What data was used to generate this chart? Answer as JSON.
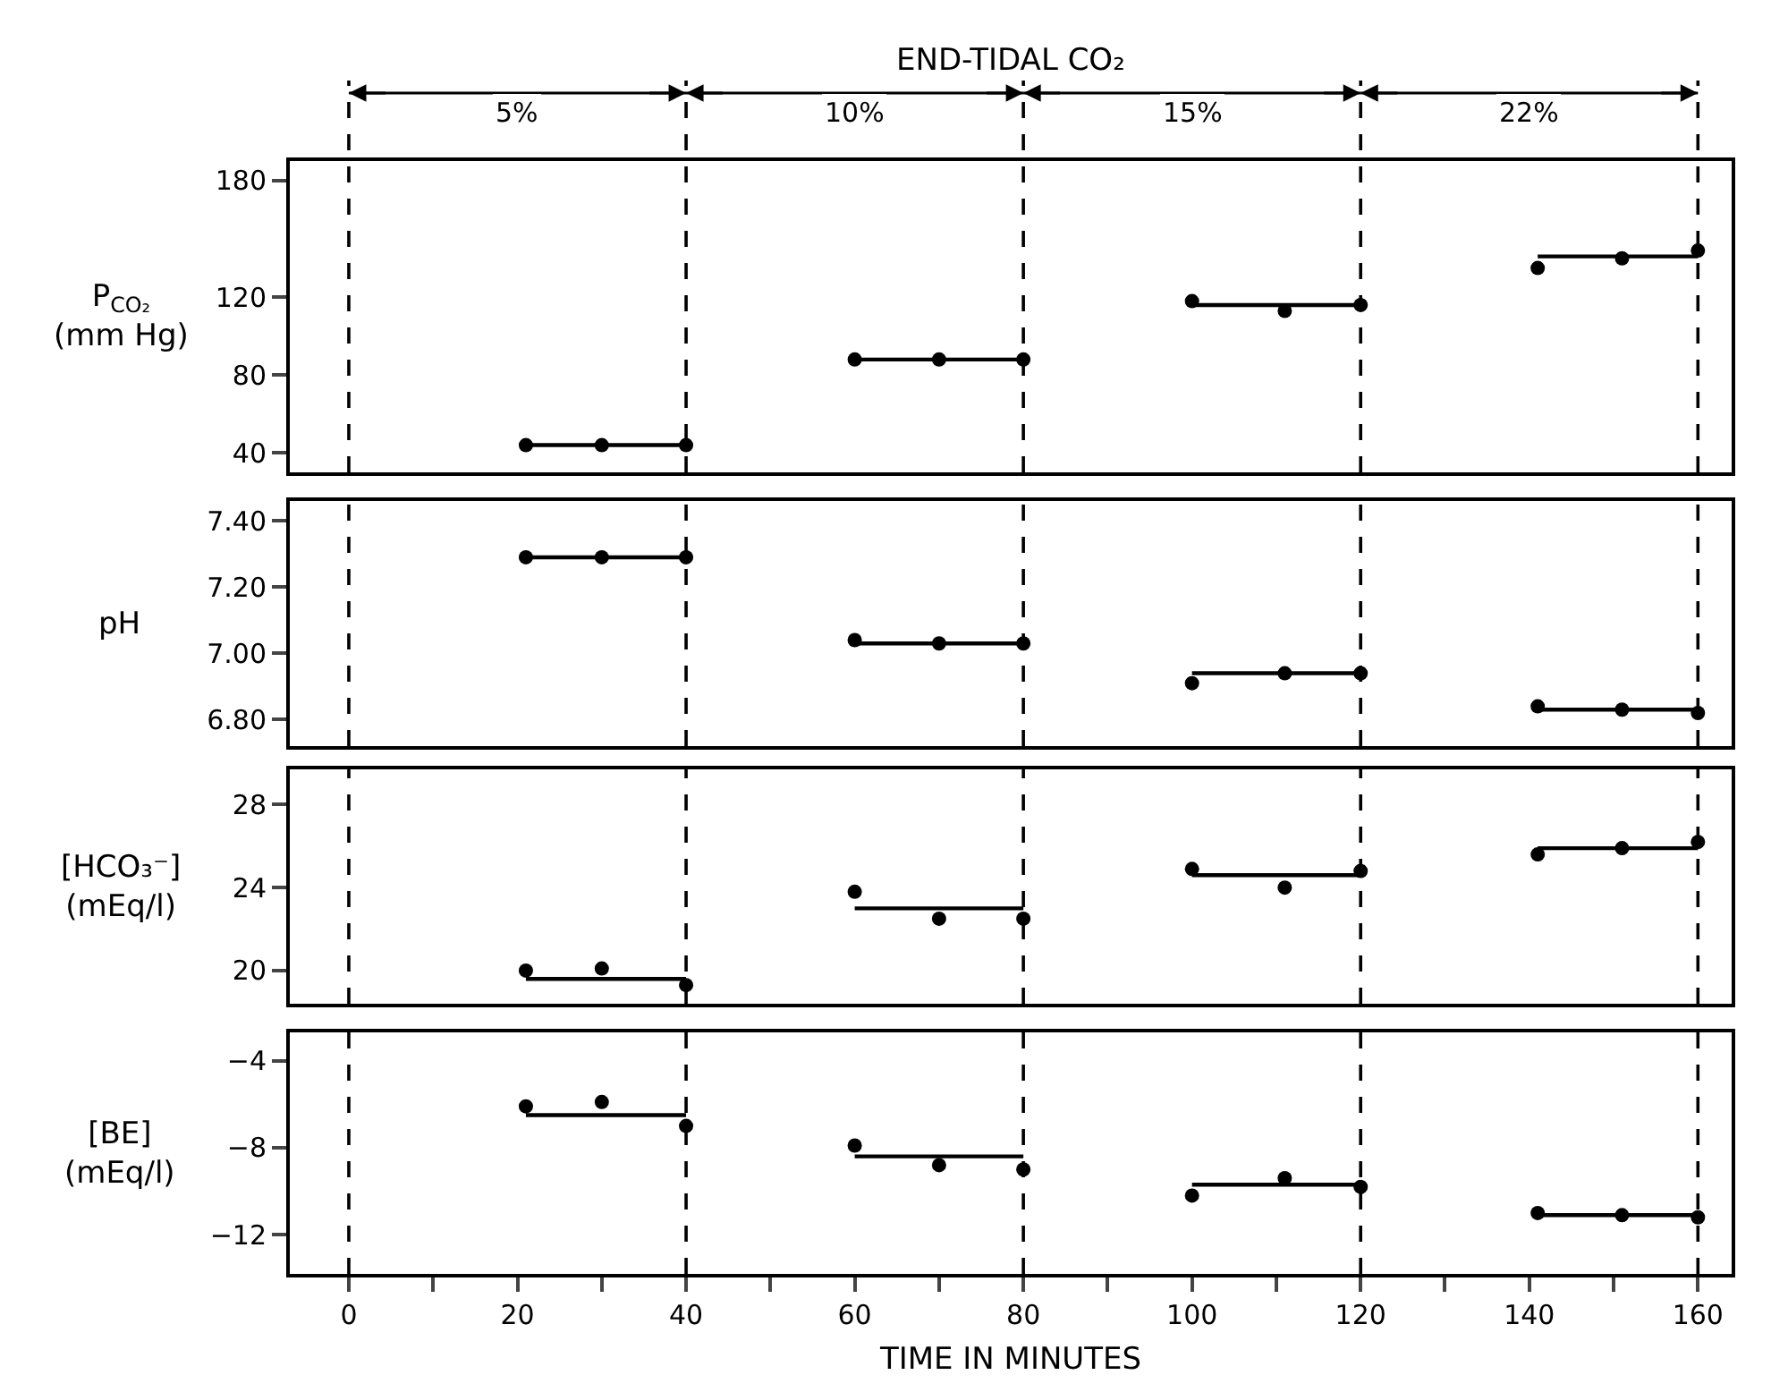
{
  "chart_data": [
    {
      "type": "scatter",
      "title": "END-TIDAL CO₂",
      "ylabel": "P$_{CO₂}$\n(mm Hg)",
      "x": [
        21,
        30,
        40,
        60,
        70,
        80,
        100,
        111,
        120,
        141,
        151,
        160
      ],
      "series": [
        {
          "color": "#000000",
          "values": [
            44,
            44,
            44,
            88,
            88,
            88,
            118,
            113,
            116,
            135,
            140,
            144
          ]
        },
        {
          "type": "line",
          "marker": "none",
          "color": "#000000",
          "x": [
            21,
            40,
            50,
            60,
            80,
            90,
            100,
            120,
            130,
            141,
            160
          ],
          "values": [
            44,
            44,
            null,
            88,
            88,
            null,
            116,
            116,
            null,
            141,
            141
          ]
        }
      ],
      "xlim": [
        -7,
        164
      ],
      "ylim": [
        30,
        190
      ],
      "yticks": [
        40,
        80,
        120,
        180
      ],
      "ref_lines": [
        {
          "axis": "x",
          "value": 0,
          "line_style": "dashed"
        },
        {
          "axis": "x",
          "value": 40,
          "line_style": "dashed"
        },
        {
          "axis": "x",
          "value": 80,
          "line_style": "dashed"
        },
        {
          "axis": "x",
          "value": 120,
          "line_style": "dashed"
        },
        {
          "axis": "x",
          "value": 160,
          "line_style": "dashed"
        }
      ],
      "annotations": [
        "5%",
        "10%",
        "15%",
        "22%"
      ],
      "marker": "circle",
      "tick_labels": "y"
    },
    {
      "type": "scatter",
      "ylabel": "pH",
      "x": [
        21,
        30,
        40,
        60,
        70,
        80,
        100,
        111,
        120,
        141,
        151,
        160
      ],
      "series": [
        {
          "color": "#000000",
          "values": [
            7.29,
            7.29,
            7.29,
            7.04,
            7.03,
            7.03,
            6.91,
            6.94,
            6.94,
            6.84,
            6.83,
            6.82
          ]
        },
        {
          "type": "line",
          "marker": "none",
          "color": "#000000",
          "x": [
            21,
            40,
            50,
            60,
            80,
            90,
            100,
            120,
            130,
            141,
            160
          ],
          "values": [
            7.29,
            7.29,
            null,
            7.03,
            7.03,
            null,
            6.94,
            6.94,
            null,
            6.83,
            6.83
          ]
        }
      ],
      "xlim": [
        -7,
        164
      ],
      "ylim": [
        6.72,
        7.46
      ],
      "yticks": [
        {
          "value": 6.8,
          "label": "6.80"
        },
        {
          "value": 7.0,
          "label": "7.00"
        },
        {
          "value": 7.2,
          "label": "7.20"
        },
        {
          "value": 7.4,
          "label": "7.40"
        }
      ],
      "ref_lines": [
        {
          "axis": "x",
          "value": 0,
          "line_style": "dashed"
        },
        {
          "axis": "x",
          "value": 40,
          "line_style": "dashed"
        },
        {
          "axis": "x",
          "value": 80,
          "line_style": "dashed"
        },
        {
          "axis": "x",
          "value": 120,
          "line_style": "dashed"
        },
        {
          "axis": "x",
          "value": 160,
          "line_style": "dashed"
        }
      ],
      "marker": "circle",
      "tick_labels": "y"
    },
    {
      "type": "scatter",
      "ylabel": "[HCO₃⁻]\n(mEq/l)",
      "x": [
        21,
        30,
        40,
        60,
        70,
        80,
        100,
        111,
        120,
        141,
        151,
        160
      ],
      "series": [
        {
          "color": "#000000",
          "values": [
            20.0,
            20.1,
            19.3,
            23.8,
            22.5,
            22.5,
            24.9,
            24.0,
            24.8,
            25.6,
            25.9,
            26.2
          ]
        },
        {
          "type": "line",
          "marker": "none",
          "color": "#000000",
          "x": [
            21,
            40,
            50,
            60,
            80,
            90,
            100,
            120,
            130,
            141,
            160
          ],
          "values": [
            19.6,
            19.6,
            null,
            23.0,
            23.0,
            null,
            24.6,
            24.6,
            null,
            25.9,
            25.9
          ]
        }
      ],
      "xlim": [
        -7,
        164
      ],
      "ylim": [
        18.4,
        29.7
      ],
      "yticks": [
        20,
        24,
        28
      ],
      "ref_lines": [
        {
          "axis": "x",
          "value": 0,
          "line_style": "dashed"
        },
        {
          "axis": "x",
          "value": 40,
          "line_style": "dashed"
        },
        {
          "axis": "x",
          "value": 80,
          "line_style": "dashed"
        },
        {
          "axis": "x",
          "value": 120,
          "line_style": "dashed"
        },
        {
          "axis": "x",
          "value": 160,
          "line_style": "dashed"
        }
      ],
      "marker": "circle",
      "tick_labels": "y"
    },
    {
      "type": "scatter",
      "ylabel": "[BE]\n(mEq/l)",
      "xlabel": "TIME IN MINUTES",
      "x": [
        21,
        30,
        40,
        60,
        70,
        80,
        100,
        111,
        120,
        141,
        151,
        160
      ],
      "series": [
        {
          "color": "#000000",
          "values": [
            -6.1,
            -5.9,
            -7.0,
            -7.9,
            -8.8,
            -9.0,
            -10.2,
            -9.4,
            -9.8,
            -11.0,
            -11.1,
            -11.2
          ]
        },
        {
          "type": "line",
          "marker": "none",
          "color": "#000000",
          "x": [
            21,
            40,
            50,
            60,
            80,
            90,
            100,
            120,
            130,
            141,
            160
          ],
          "values": [
            -6.5,
            -6.5,
            null,
            -8.4,
            -8.4,
            null,
            -9.7,
            -9.7,
            null,
            -11.1,
            -11.1
          ]
        }
      ],
      "xlim": [
        -7,
        164
      ],
      "ylim": [
        -13.8,
        -2.7
      ],
      "yticks": [
        {
          "value": -12,
          "label": "−12"
        },
        {
          "value": -8,
          "label": "−8"
        },
        {
          "value": -4,
          "label": "−4"
        }
      ],
      "xticks": [
        0,
        {
          "value": 10,
          "label": null
        },
        20,
        {
          "value": 30,
          "label": null
        },
        40,
        {
          "value": 50,
          "label": null
        },
        60,
        {
          "value": 70,
          "label": null
        },
        80,
        {
          "value": 90,
          "label": null
        },
        100,
        {
          "value": 110,
          "label": null
        },
        120,
        {
          "value": 130,
          "label": null
        },
        140,
        {
          "value": 150,
          "label": null
        },
        160
      ],
      "ref_lines": [
        {
          "axis": "x",
          "value": 0,
          "line_style": "dashed"
        },
        {
          "axis": "x",
          "value": 40,
          "line_style": "dashed"
        },
        {
          "axis": "x",
          "value": 80,
          "line_style": "dashed"
        },
        {
          "axis": "x",
          "value": 120,
          "line_style": "dashed"
        },
        {
          "axis": "x",
          "value": 160,
          "line_style": "dashed"
        }
      ],
      "marker": "circle"
    }
  ]
}
